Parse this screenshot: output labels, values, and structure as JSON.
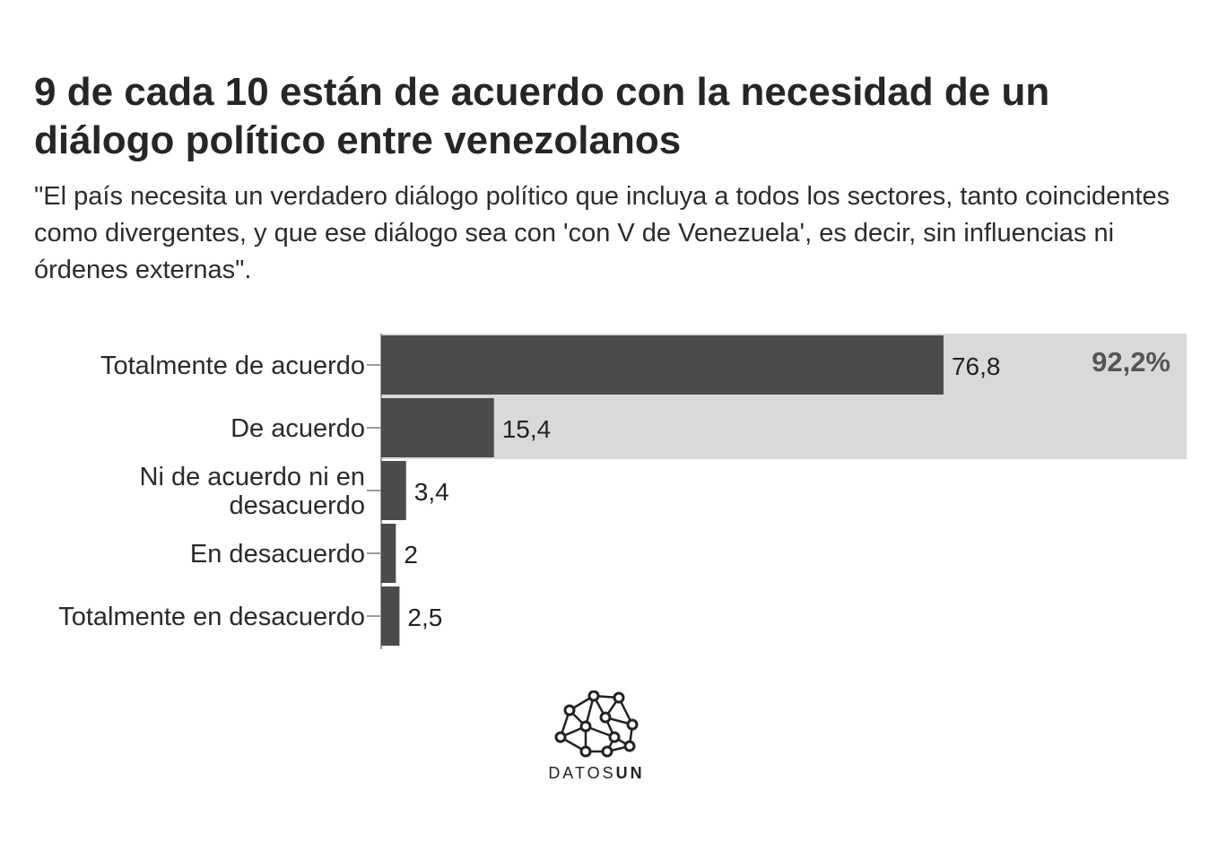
{
  "title": "9 de cada 10 están de acuerdo con la necesidad de un diálogo político entre venezolanos",
  "subtitle": "\"El país necesita un verdadero diálogo político que incluya a todos los sectores, tanto coincidentes como divergentes, y que ese diálogo sea con 'con V de Venezuela', es decir, sin influencias ni órdenes externas\".",
  "chart_data": {
    "type": "bar",
    "orientation": "horizontal",
    "categories": [
      "Totalmente de acuerdo",
      "De acuerdo",
      "Ni de acuerdo ni en desacuerdo",
      "En desacuerdo",
      "Totalmente en desacuerdo"
    ],
    "category_lines": [
      [
        "Totalmente de acuerdo"
      ],
      [
        "De acuerdo"
      ],
      [
        "Ni de acuerdo ni en",
        "desacuerdo"
      ],
      [
        "En desacuerdo"
      ],
      [
        "Totalmente en desacuerdo"
      ]
    ],
    "values": [
      76.8,
      15.4,
      3.4,
      2,
      2.5
    ],
    "value_labels": [
      "76,8",
      "15,4",
      "3,4",
      "2",
      "2,5"
    ],
    "xlim": [
      0,
      110
    ],
    "highlight": {
      "categories": [
        "Totalmente de acuerdo",
        "De acuerdo"
      ],
      "label": "92,2%",
      "value": 92.2
    },
    "colors": {
      "bar": "#4b4b4d",
      "highlight_band": "#d9d9da",
      "highlight_text": "#555555",
      "axis": "#9a9a9a"
    }
  },
  "logo": {
    "name": "network-logo-icon",
    "text_light": "DATOS",
    "text_bold": "UN"
  }
}
